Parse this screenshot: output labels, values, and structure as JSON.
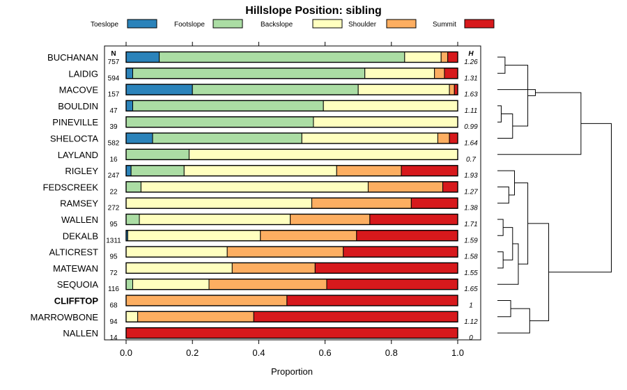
{
  "chart_data": {
    "type": "bar",
    "orientation": "horizontal",
    "stacked": true,
    "title": "Hillslope Position: sibling",
    "xlabel": "Proportion",
    "xlim": [
      0,
      1
    ],
    "xticks": [
      "0.0",
      "0.2",
      "0.4",
      "0.6",
      "0.8",
      "1.0"
    ],
    "xtick_values": [
      0,
      0.2,
      0.4,
      0.6,
      0.8,
      1.0
    ],
    "n_header": "N",
    "h_header": "H",
    "series": [
      {
        "name": "Toeslope",
        "color": "#2B83BA"
      },
      {
        "name": "Footslope",
        "color": "#ABDDA4"
      },
      {
        "name": "Backslope",
        "color": "#FFFFBF"
      },
      {
        "name": "Shoulder",
        "color": "#FDAE61"
      },
      {
        "name": "Summit",
        "color": "#D7191C"
      }
    ],
    "rows": [
      {
        "name": "BUCHANAN",
        "n": "757",
        "h": "1.26",
        "values": [
          0.1,
          0.74,
          0.11,
          0.02,
          0.03
        ]
      },
      {
        "name": "LAIDIG",
        "n": "594",
        "h": "1.31",
        "values": [
          0.02,
          0.7,
          0.21,
          0.03,
          0.04
        ]
      },
      {
        "name": "MACOVE",
        "n": "157",
        "h": "1.63",
        "values": [
          0.2,
          0.5,
          0.275,
          0.015,
          0.01
        ]
      },
      {
        "name": "BOULDIN",
        "n": "47",
        "h": "1.11",
        "values": [
          0.02,
          0.575,
          0.405,
          0,
          0
        ]
      },
      {
        "name": "PINEVILLE",
        "n": "39",
        "h": "0.99",
        "values": [
          0,
          0.565,
          0.435,
          0,
          0
        ]
      },
      {
        "name": "SHELOCTA",
        "n": "582",
        "h": "1.64",
        "values": [
          0.08,
          0.45,
          0.41,
          0.035,
          0.025
        ]
      },
      {
        "name": "LAYLAND",
        "n": "16",
        "h": "0.7",
        "values": [
          0,
          0.19,
          0.81,
          0,
          0
        ]
      },
      {
        "name": "RIGLEY",
        "n": "247",
        "h": "1.93",
        "values": [
          0.015,
          0.16,
          0.46,
          0.195,
          0.17
        ]
      },
      {
        "name": "FEDSCREEK",
        "n": "22",
        "h": "1.27",
        "values": [
          0,
          0.045,
          0.685,
          0.225,
          0.045
        ]
      },
      {
        "name": "RAMSEY",
        "n": "272",
        "h": "1.38",
        "values": [
          0,
          0,
          0.56,
          0.3,
          0.14
        ]
      },
      {
        "name": "WALLEN",
        "n": "95",
        "h": "1.71",
        "values": [
          0,
          0.04,
          0.455,
          0.24,
          0.265
        ]
      },
      {
        "name": "DEKALB",
        "n": "1311",
        "h": "1.59",
        "values": [
          0.005,
          0,
          0.4,
          0.29,
          0.305
        ]
      },
      {
        "name": "ALTICREST",
        "n": "95",
        "h": "1.58",
        "values": [
          0,
          0,
          0.305,
          0.35,
          0.345
        ]
      },
      {
        "name": "MATEWAN",
        "n": "72",
        "h": "1.55",
        "values": [
          0,
          0,
          0.32,
          0.25,
          0.43
        ]
      },
      {
        "name": "SEQUOIA",
        "n": "116",
        "h": "1.65",
        "values": [
          0,
          0.02,
          0.23,
          0.355,
          0.395
        ]
      },
      {
        "name": "CLIFFTOP",
        "n": "68",
        "h": "1",
        "bold": true,
        "values": [
          0,
          0,
          0,
          0.485,
          0.515
        ]
      },
      {
        "name": "MARROWBONE",
        "n": "94",
        "h": "1.12",
        "values": [
          0,
          0,
          0.035,
          0.35,
          0.615
        ]
      },
      {
        "name": "NALLEN",
        "n": "14",
        "h": "0",
        "values": [
          0,
          0,
          0,
          0,
          1.0
        ]
      }
    ],
    "dendrogram": [
      {
        "a": 0,
        "b": 1,
        "h": 0.02
      },
      {
        "a": 3,
        "b": 4,
        "h": 0.01
      },
      {
        "a": 19,
        "b": 5,
        "h": 0.04
      },
      {
        "a": 18,
        "b": 20,
        "h": 0.08
      },
      {
        "a": 21,
        "b": 2,
        "h": 0.1
      },
      {
        "a": 22,
        "b": 6,
        "h": 0.22
      },
      {
        "a": 8,
        "b": 9,
        "h": 0.03
      },
      {
        "a": 24,
        "b": 7,
        "h": 0.045
      },
      {
        "a": 10,
        "b": 11,
        "h": 0.015
      },
      {
        "a": 12,
        "b": 13,
        "h": 0.015
      },
      {
        "a": 26,
        "b": 27,
        "h": 0.04
      },
      {
        "a": 28,
        "b": 14,
        "h": 0.055
      },
      {
        "a": 25,
        "b": 29,
        "h": 0.08
      },
      {
        "a": 15,
        "b": 16,
        "h": 0.035
      },
      {
        "a": 31,
        "b": 17,
        "h": 0.085
      },
      {
        "a": 30,
        "b": 32,
        "h": 0.135
      },
      {
        "a": 23,
        "b": 33,
        "h": 0.3
      }
    ]
  }
}
